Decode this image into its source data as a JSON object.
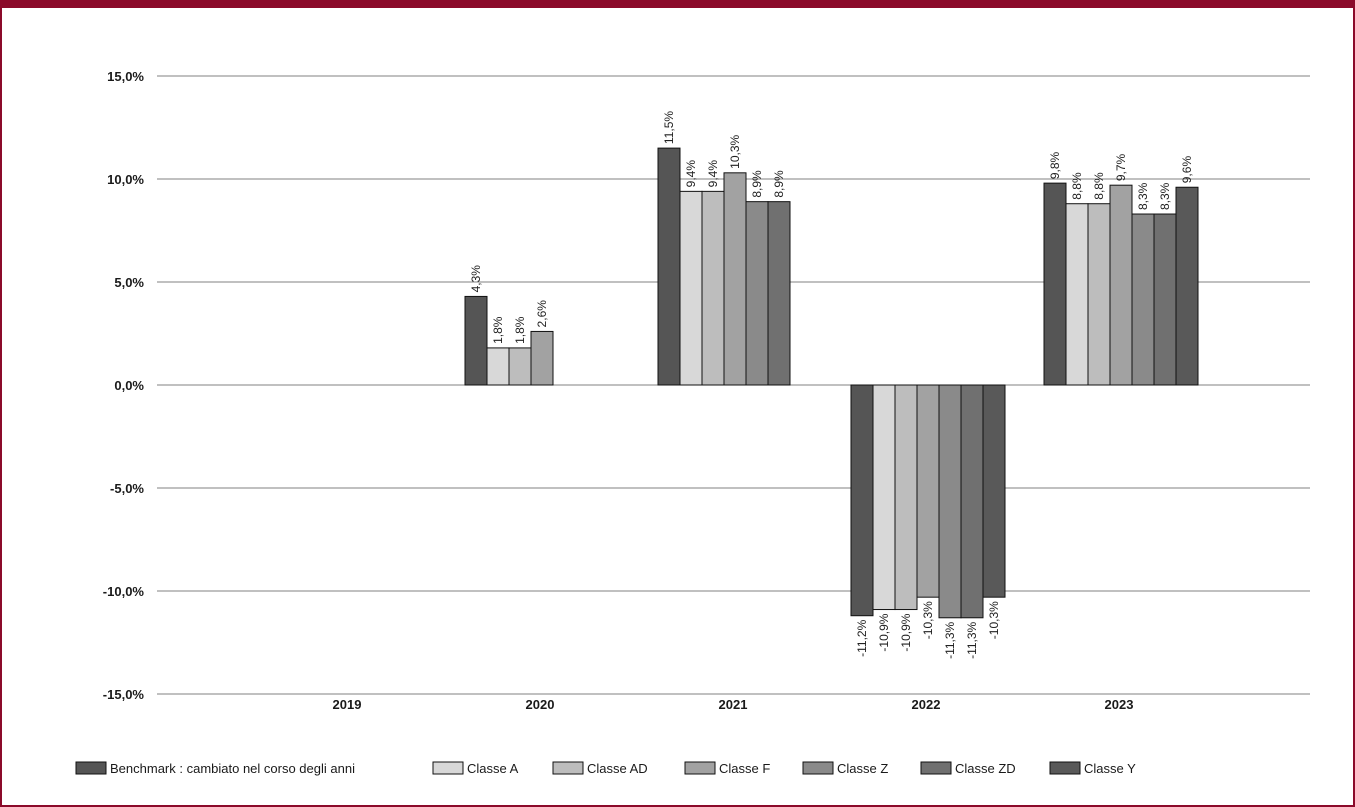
{
  "chart_data": {
    "type": "bar",
    "title": "",
    "xlabel": "",
    "ylabel": "",
    "ylim": [
      -15,
      15
    ],
    "yticks": [
      "15,0%",
      "10,0%",
      "5,0%",
      "0,0%",
      "-5,0%",
      "-10,0%",
      "-15,0%"
    ],
    "ytick_values": [
      15,
      10,
      5,
      0,
      -5,
      -10,
      -15
    ],
    "grid": "horizontal",
    "legend_position": "bottom",
    "categories": [
      "2019",
      "2020",
      "2021",
      "2022",
      "2023"
    ],
    "series": [
      {
        "name": "Benchmark : cambiato nel corso degli anni",
        "color": "#555555",
        "values": [
          null,
          4.3,
          11.5,
          -11.2,
          9.8
        ],
        "labels": [
          "",
          "4,3%",
          "11,5%",
          "-11,2%",
          "9,8%"
        ]
      },
      {
        "name": "Classe A",
        "color": "#d8d8d8",
        "values": [
          null,
          1.8,
          9.4,
          -10.9,
          8.8
        ],
        "labels": [
          "",
          "1,8%",
          "9,4%",
          "-10,9%",
          "8,8%"
        ]
      },
      {
        "name": "Classe AD",
        "color": "#bdbdbd",
        "values": [
          null,
          1.8,
          9.4,
          -10.9,
          8.8
        ],
        "labels": [
          "",
          "1,8%",
          "9,4%",
          "-10,9%",
          "8,8%"
        ]
      },
      {
        "name": "Classe F",
        "color": "#a2a2a2",
        "values": [
          null,
          2.6,
          10.3,
          -10.3,
          9.7
        ],
        "labels": [
          "",
          "2,6%",
          "10,3%",
          "-10,3%",
          "9,7%"
        ]
      },
      {
        "name": "Classe Z",
        "color": "#8a8a8a",
        "values": [
          null,
          null,
          8.9,
          -11.3,
          8.3
        ],
        "labels": [
          "",
          "",
          "8,9%",
          "-11,3%",
          "8,3%"
        ]
      },
      {
        "name": "Classe ZD",
        "color": "#707070",
        "values": [
          null,
          null,
          8.9,
          -11.3,
          8.3
        ],
        "labels": [
          "",
          "",
          "8,9%",
          "-11,3%",
          "8,3%"
        ]
      },
      {
        "name": "Classe Y",
        "color": "#595959",
        "values": [
          null,
          null,
          null,
          -10.3,
          9.6
        ],
        "labels": [
          "",
          "",
          "",
          "-10,3%",
          "9,6%"
        ]
      }
    ]
  },
  "colors": {
    "frame": "#8b0a2a",
    "grid": "#808080"
  }
}
